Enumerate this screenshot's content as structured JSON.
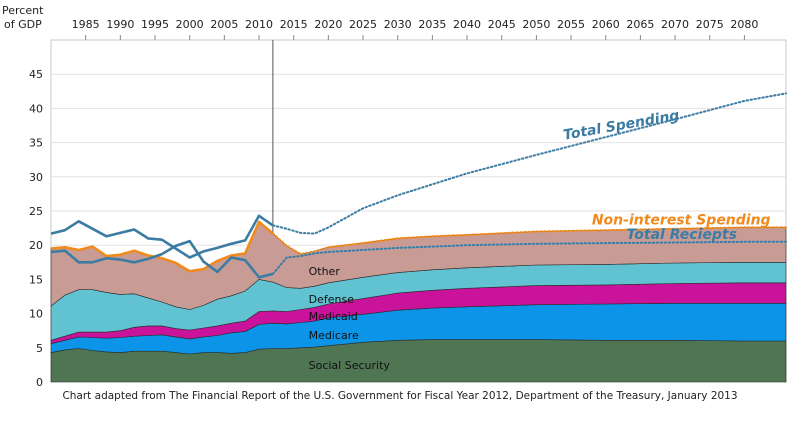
{
  "chart_data": {
    "type": "area",
    "ylabel": "Percent\nof GDP",
    "xlim": [
      1980,
      2086
    ],
    "ylim": [
      0,
      50
    ],
    "x_ticks": [
      1985,
      1990,
      1995,
      2000,
      2005,
      2010,
      2015,
      2020,
      2025,
      2030,
      2035,
      2040,
      2045,
      2050,
      2055,
      2060,
      2065,
      2070,
      2075,
      2080
    ],
    "y_ticks": [
      0,
      5,
      10,
      15,
      20,
      25,
      30,
      35,
      40,
      45
    ],
    "projection_start": 2012,
    "x": [
      1980,
      1982,
      1984,
      1986,
      1988,
      1990,
      1992,
      1994,
      1996,
      1998,
      2000,
      2002,
      2004,
      2006,
      2008,
      2010,
      2012,
      2014,
      2016,
      2018,
      2020,
      2025,
      2030,
      2035,
      2040,
      2050,
      2060,
      2070,
      2080,
      2086
    ],
    "stacked_series": [
      {
        "name": "Social Security",
        "color": "#4f7553",
        "values": [
          4.3,
          4.7,
          4.9,
          4.6,
          4.4,
          4.3,
          4.5,
          4.5,
          4.5,
          4.3,
          4.1,
          4.3,
          4.3,
          4.2,
          4.3,
          4.8,
          4.9,
          4.9,
          5.0,
          5.1,
          5.3,
          5.8,
          6.1,
          6.2,
          6.2,
          6.2,
          6.1,
          6.1,
          6.0,
          6.0
        ]
      },
      {
        "name": "Medicare",
        "color": "#0b94e8",
        "values": [
          1.3,
          1.4,
          1.7,
          1.9,
          2.0,
          2.2,
          2.2,
          2.3,
          2.4,
          2.3,
          2.2,
          2.3,
          2.5,
          3.0,
          3.1,
          3.6,
          3.7,
          3.6,
          3.7,
          3.8,
          4.1,
          4.1,
          4.4,
          4.6,
          4.8,
          5.1,
          5.3,
          5.4,
          5.5,
          5.5
        ]
      },
      {
        "name": "Medicaid",
        "color": "#c9139a",
        "values": [
          0.5,
          0.6,
          0.7,
          0.8,
          0.9,
          1.0,
          1.3,
          1.4,
          1.3,
          1.2,
          1.3,
          1.3,
          1.4,
          1.4,
          1.5,
          1.9,
          1.8,
          1.8,
          1.9,
          2.0,
          2.0,
          2.3,
          2.5,
          2.6,
          2.7,
          2.8,
          2.8,
          2.9,
          3.0,
          3.0
        ]
      },
      {
        "name": "Defense",
        "color": "#61c3d2",
        "values": [
          5.0,
          6.0,
          6.2,
          6.2,
          5.8,
          5.3,
          4.9,
          4.1,
          3.5,
          3.2,
          3.0,
          3.3,
          3.9,
          4.0,
          4.4,
          4.7,
          4.2,
          3.5,
          3.1,
          3.1,
          3.1,
          3.1,
          3.0,
          3.0,
          3.0,
          3.0,
          3.0,
          3.0,
          3.0,
          3.0
        ]
      },
      {
        "name": "Other",
        "color": "#c99b95",
        "values": [
          8.4,
          7.0,
          5.8,
          6.3,
          5.3,
          5.8,
          6.3,
          6.2,
          6.4,
          6.4,
          5.6,
          5.3,
          5.6,
          5.9,
          5.5,
          8.4,
          7.1,
          6.1,
          5.0,
          5.1,
          5.2,
          5.0,
          5.0,
          4.9,
          4.8,
          4.9,
          5.0,
          5.0,
          5.1,
          5.1
        ]
      }
    ],
    "line_series": [
      {
        "name": "Non-interest Spending",
        "color": "#f18a1d",
        "projected_style": "dotted",
        "values": [
          19.5,
          19.7,
          19.3,
          19.8,
          18.4,
          18.6,
          19.2,
          18.5,
          18.1,
          17.4,
          16.2,
          16.5,
          17.7,
          18.5,
          18.8,
          23.4,
          21.7,
          19.9,
          18.7,
          19.1,
          19.7,
          20.3,
          21.0,
          21.3,
          21.5,
          22.0,
          22.2,
          22.4,
          22.6,
          22.6
        ]
      },
      {
        "name": "Total Spending",
        "color": "#3c7ca3",
        "projected_style": "dotted",
        "values": [
          21.7,
          22.2,
          23.5,
          22.4,
          21.3,
          21.8,
          22.3,
          21.0,
          20.8,
          19.5,
          18.2,
          19.1,
          19.6,
          20.2,
          20.7,
          24.3,
          22.9,
          22.4,
          21.8,
          21.7,
          22.6,
          25.4,
          27.3,
          28.9,
          30.5,
          33.2,
          35.8,
          38.4,
          41.1,
          42.2
        ]
      },
      {
        "name": "Total Reciepts",
        "color": "#3c7ca3",
        "projected_style": "dotted",
        "values": [
          19.0,
          19.2,
          17.5,
          17.5,
          18.1,
          17.9,
          17.5,
          18.0,
          18.7,
          19.9,
          20.6,
          17.6,
          16.1,
          18.2,
          17.8,
          15.3,
          15.8,
          18.2,
          18.4,
          18.8,
          19.0,
          19.3,
          19.6,
          19.8,
          20.0,
          20.2,
          20.3,
          20.4,
          20.5,
          20.5
        ]
      }
    ],
    "annotations": [
      "Total Spending",
      "Non-interest Spending",
      "Total Reciepts"
    ]
  },
  "caption": "Chart adapted from The Financial Report of the U.S. Government for Fiscal Year 2012, Department of the Treasury, January 2013"
}
